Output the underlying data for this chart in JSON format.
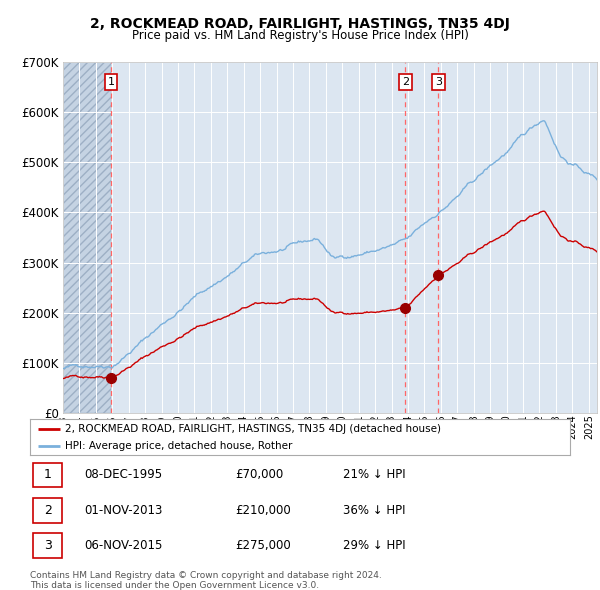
{
  "title": "2, ROCKMEAD ROAD, FAIRLIGHT, HASTINGS, TN35 4DJ",
  "subtitle": "Price paid vs. HM Land Registry's House Price Index (HPI)",
  "hpi_label": "HPI: Average price, detached house, Rother",
  "property_label": "2, ROCKMEAD ROAD, FAIRLIGHT, HASTINGS, TN35 4DJ (detached house)",
  "footer1": "Contains HM Land Registry data © Crown copyright and database right 2024.",
  "footer2": "This data is licensed under the Open Government Licence v3.0.",
  "transactions": [
    {
      "id": 1,
      "date": "08-DEC-1995",
      "year": 1995.93,
      "price": 70000,
      "pct": "21%",
      "dir": "↓"
    },
    {
      "id": 2,
      "date": "01-NOV-2013",
      "year": 2013.83,
      "price": 210000,
      "pct": "36%",
      "dir": "↓"
    },
    {
      "id": 3,
      "date": "06-NOV-2015",
      "year": 2015.84,
      "price": 275000,
      "pct": "29%",
      "dir": "↓"
    }
  ],
  "hpi_color": "#7ab0dc",
  "price_color": "#cc0000",
  "dot_color": "#990000",
  "dashed_color": "#ff6666",
  "bg_chart": "#dce6f1",
  "bg_hatch": "#c5d3e3",
  "grid_color": "#ffffff",
  "ylim": [
    0,
    700000
  ],
  "xlim_start": 1993.0,
  "xlim_end": 2025.5,
  "hatch_end": 1995.93
}
